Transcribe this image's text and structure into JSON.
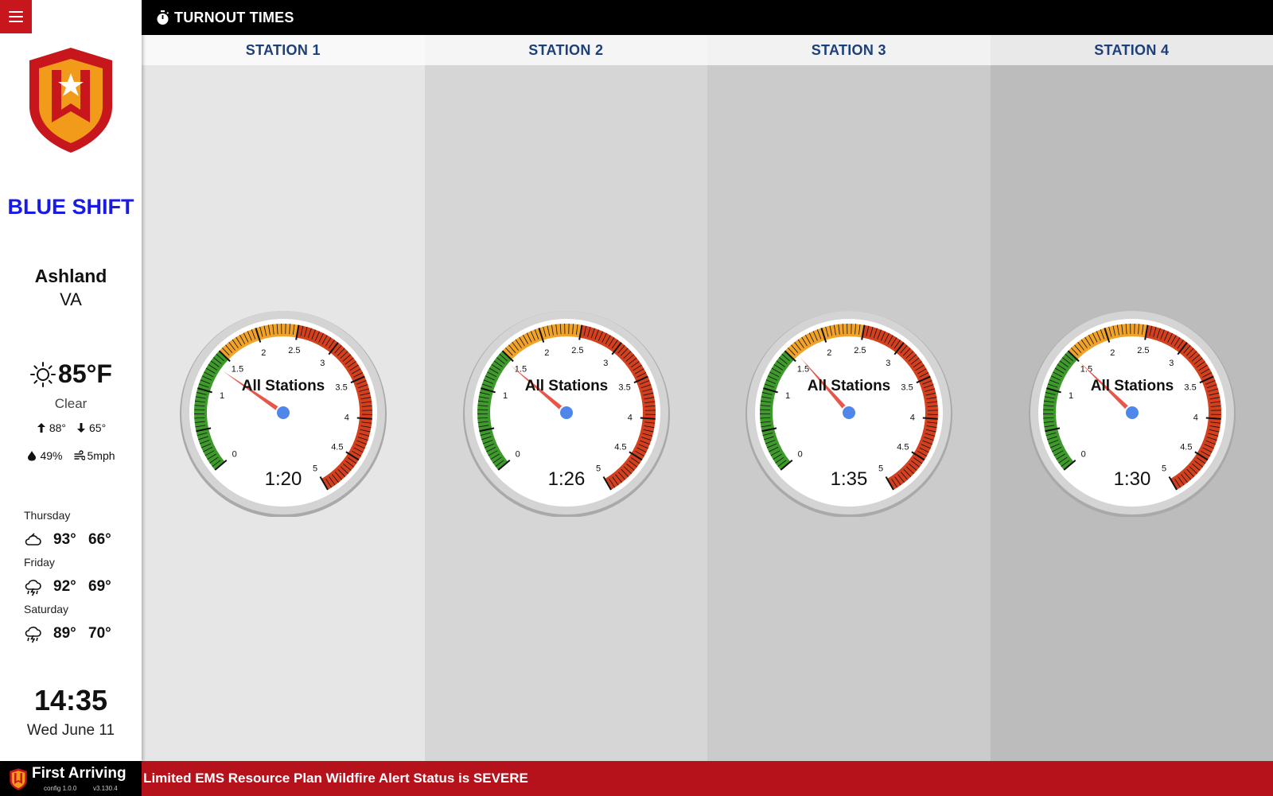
{
  "header": {
    "title": "TURNOUT TIMES",
    "icon": "stopwatch-icon"
  },
  "sidebar": {
    "shift": "BLUE SHIFT",
    "city": "Ashland",
    "state": "VA",
    "current": {
      "icon": "sun-icon",
      "temp": "85°F",
      "condition": "Clear",
      "high": "88°",
      "low": "65°",
      "humidity": "49%",
      "wind": "5mph"
    },
    "forecast": [
      {
        "day": "Thursday",
        "icon": "cloud-icon",
        "high": "93°",
        "low": "66°"
      },
      {
        "day": "Friday",
        "icon": "thunderstorm-icon",
        "high": "92°",
        "low": "69°"
      },
      {
        "day": "Saturday",
        "icon": "thunderstorm-icon",
        "high": "89°",
        "low": "70°"
      }
    ],
    "time": "14:35",
    "date": "Wed June 11"
  },
  "stations": [
    {
      "name": "STATION 1",
      "label": "All Stations",
      "time": "1:20",
      "minutes": 1.333
    },
    {
      "name": "STATION 2",
      "label": "All Stations",
      "time": "1:26",
      "minutes": 1.433
    },
    {
      "name": "STATION 3",
      "label": "All Stations",
      "time": "1:35",
      "minutes": 1.583
    },
    {
      "name": "STATION 4",
      "label": "All Stations",
      "time": "1:30",
      "minutes": 1.5
    }
  ],
  "gauge": {
    "min": 0,
    "max": 5,
    "labels": [
      "0",
      "1",
      "1.5",
      "2",
      "2.5",
      "3",
      "3.5",
      "4",
      "4.5",
      "5"
    ],
    "bands": [
      {
        "from": 0,
        "to": 1.5,
        "color": "#3f9a2c"
      },
      {
        "from": 1.5,
        "to": 2.5,
        "color": "#f0a229"
      },
      {
        "from": 2.5,
        "to": 5,
        "color": "#d4401e"
      }
    ]
  },
  "colors": {
    "column_backgrounds": [
      "#e6e6e6",
      "#d6d6d6",
      "#cbcbcb",
      "#bcbcbc"
    ],
    "header_backgrounds": [
      "#f9f9f9",
      "#f5f5f5",
      "#f2f2f2",
      "#e9e9e9"
    ],
    "needle": "#e8564a",
    "hub": "#4f86ea",
    "accent": "#c8161d",
    "shift": "#1a1ae6"
  },
  "ticker": {
    "brand": "First Arriving",
    "config": "config 1.0.0",
    "version": "v3.130.4",
    "message": "ns on Limited EMS Resource Plan Wildfire Alert Status is SEVERE"
  }
}
